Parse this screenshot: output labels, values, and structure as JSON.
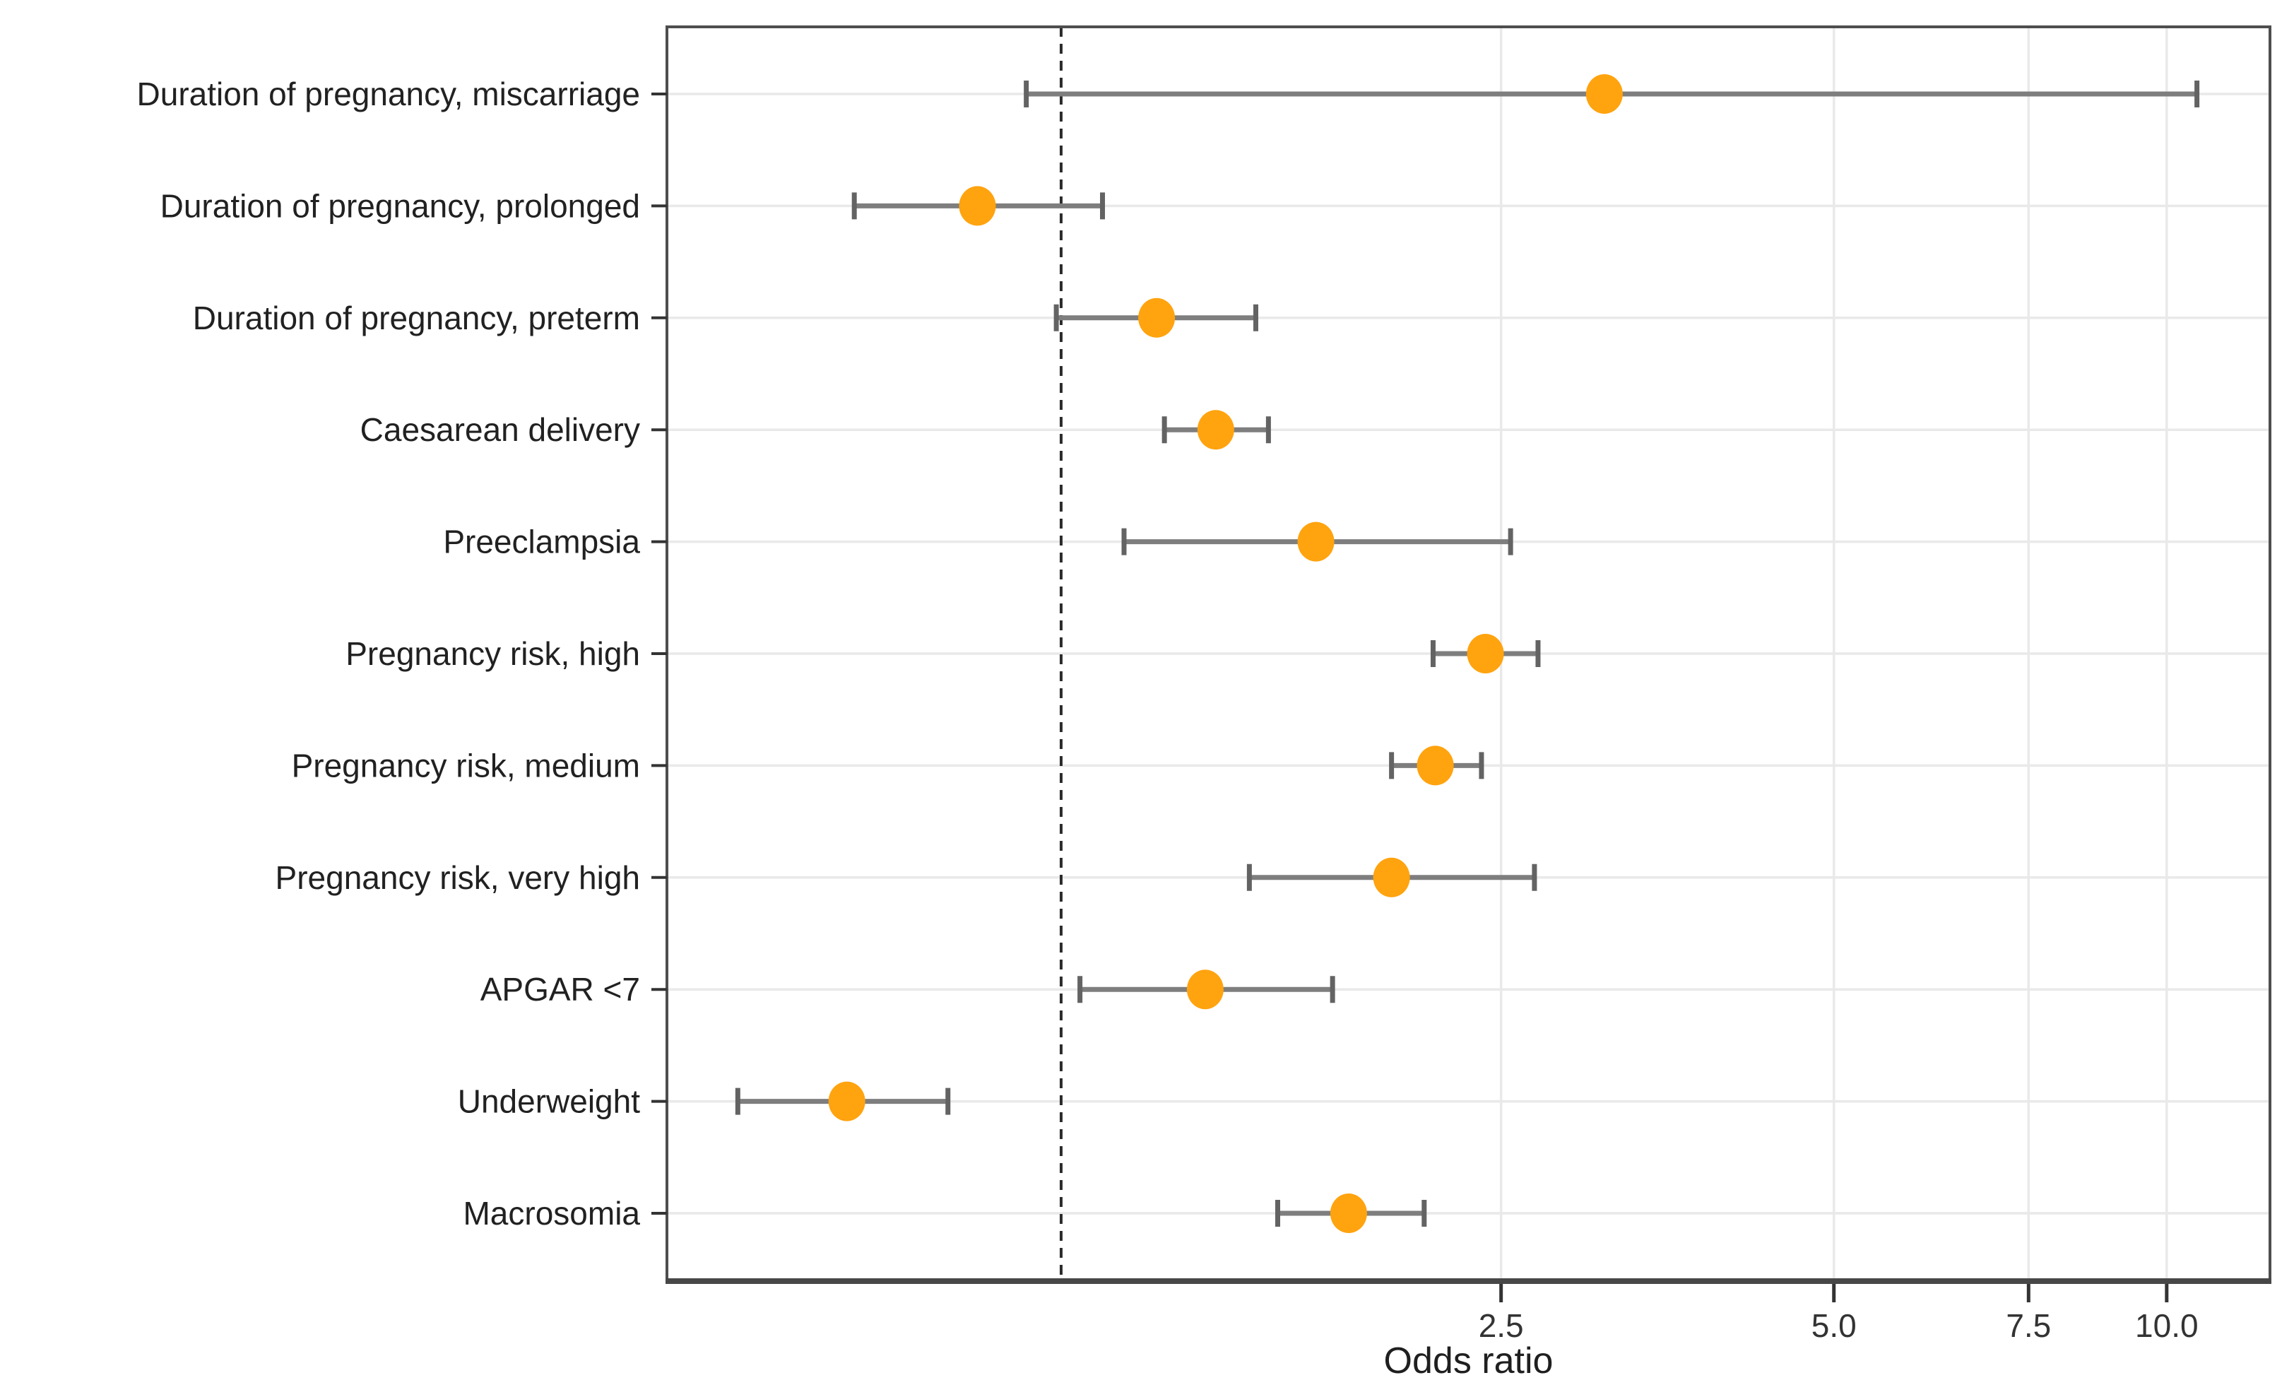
{
  "chart_data": {
    "type": "scatter",
    "subtype": "forest-plot",
    "title": "",
    "xlabel": "Odds ratio",
    "ylabel": "",
    "x_scale": "log10",
    "xlim": [
      0.44,
      12.4
    ],
    "x_ticks": [
      {
        "value": 2.5,
        "label": "2.5"
      },
      {
        "value": 5.0,
        "label": "5.0"
      },
      {
        "value": 7.5,
        "label": "7.5"
      },
      {
        "value": 10.0,
        "label": "10.0"
      }
    ],
    "reference_line": 1.0,
    "grid": true,
    "legend": "none",
    "rows": [
      {
        "label": "Duration of pregnancy, miscarriage",
        "or": 3.1,
        "ci_low": 0.93,
        "ci_high": 10.65
      },
      {
        "label": "Duration of pregnancy, prolonged",
        "or": 0.84,
        "ci_low": 0.65,
        "ci_high": 1.09
      },
      {
        "label": "Duration of pregnancy, preterm",
        "or": 1.22,
        "ci_low": 0.99,
        "ci_high": 1.5
      },
      {
        "label": "Caesarean delivery",
        "or": 1.38,
        "ci_low": 1.24,
        "ci_high": 1.54
      },
      {
        "label": "Preeclampsia",
        "or": 1.7,
        "ci_low": 1.14,
        "ci_high": 2.55
      },
      {
        "label": "Pregnancy risk, high",
        "or": 2.42,
        "ci_low": 2.17,
        "ci_high": 2.7
      },
      {
        "label": "Pregnancy risk, medium",
        "or": 2.18,
        "ci_low": 1.99,
        "ci_high": 2.4
      },
      {
        "label": "Pregnancy risk, very high",
        "or": 1.99,
        "ci_low": 1.48,
        "ci_high": 2.68
      },
      {
        "label": "APGAR <7",
        "or": 1.35,
        "ci_low": 1.04,
        "ci_high": 1.76
      },
      {
        "label": "Underweight",
        "or": 0.64,
        "ci_low": 0.51,
        "ci_high": 0.79
      },
      {
        "label": "Macrosomia",
        "or": 1.82,
        "ci_low": 1.57,
        "ci_high": 2.13
      }
    ]
  },
  "colors": {
    "point": "#FFA30F",
    "error_line": "#7E7E7E",
    "error_cap": "#636363",
    "gridline": "#E9E9E9",
    "panel_border": "#4E4E4E",
    "axis_line": "#474747",
    "tick_mark": "#333333",
    "tick_label": "#333333",
    "category_label": "#212121",
    "reference_line": "#2B2B2B",
    "background": "#FFFFFF"
  }
}
